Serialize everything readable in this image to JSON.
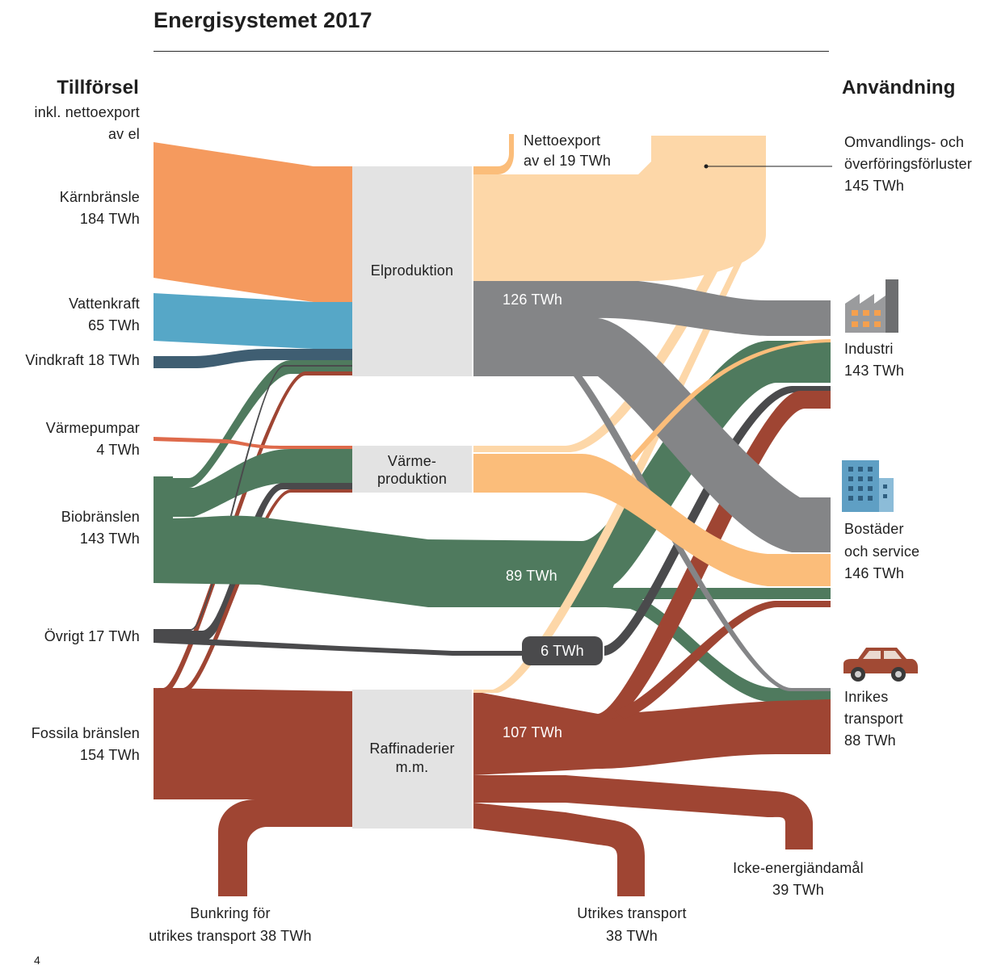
{
  "title": "Energisystemet 2017",
  "page_number": "4",
  "headings": {
    "left": "Tillförsel",
    "right": "Användning"
  },
  "supply": {
    "subtitle": [
      "inkl. nettoexport",
      "av el"
    ],
    "items": [
      {
        "name": "Kärnbränsle",
        "value": "184 TWh",
        "color": "#f59a5e"
      },
      {
        "name": "Vattenkraft",
        "value": "65 TWh",
        "color": "#56a7c7"
      },
      {
        "name": "Vindkraft",
        "value": "18 TWh",
        "color": "#3f5e72"
      },
      {
        "name": "Värmepumpar",
        "value": "4 TWh",
        "color": "#de6a4b"
      },
      {
        "name": "Biobränslen",
        "value": "143 TWh",
        "color": "#4f7a5e"
      },
      {
        "name": "Övrigt",
        "value": "17 TWh",
        "color": "#4a4a4c"
      },
      {
        "name": "Fossila bränslen",
        "value": "154 TWh",
        "color": "#9f4533"
      }
    ],
    "labels": {
      "karn": [
        "Kärnbränsle",
        "184 TWh"
      ],
      "vatten": [
        "Vattenkraft",
        "65 TWh"
      ],
      "vind": "Vindkraft 18 TWh",
      "varme": [
        "Värmepumpar",
        "4 TWh"
      ],
      "bio": [
        "Biobränslen",
        "143 TWh"
      ],
      "ovrigt": "Övrigt 17 TWh",
      "fossil": [
        "Fossila bränslen",
        "154 TWh"
      ]
    }
  },
  "conversion": {
    "el": "Elproduktion",
    "varme": [
      "Värme-",
      "produktion"
    ],
    "raff": [
      "Raffinaderier",
      "m.m."
    ]
  },
  "flow_labels": {
    "el_use": "126 TWh",
    "bio_use": "89 TWh",
    "ovrigt_use": "6 TWh",
    "oil_use": "107 TWh"
  },
  "use": {
    "forluster": [
      "Omvandlings- och",
      "överföringsförluster",
      "145 TWh"
    ],
    "nettoexport": [
      "Nettoexport",
      "av el 19 TWh"
    ],
    "industri": [
      "Industri",
      "143 TWh"
    ],
    "bostader": [
      "Bostäder",
      "och service",
      "146 TWh"
    ],
    "transport": [
      "Inrikes",
      "transport",
      "88 TWh"
    ],
    "icke": [
      "Icke-energiändamål",
      "39 TWh"
    ],
    "utrikes": [
      "Utrikes transport",
      "38 TWh"
    ],
    "bunkring": [
      "Bunkring för",
      "utrikes transport 38 TWh"
    ]
  },
  "icons": [
    "factory-icon",
    "building-icon",
    "car-icon"
  ],
  "colors": {
    "el": "#848587",
    "loss": "#fdd7a8",
    "heat": "#fbbd7a",
    "bio": "#4f7a5e",
    "fossil": "#9f4533",
    "box": "#e3e3e3"
  }
}
